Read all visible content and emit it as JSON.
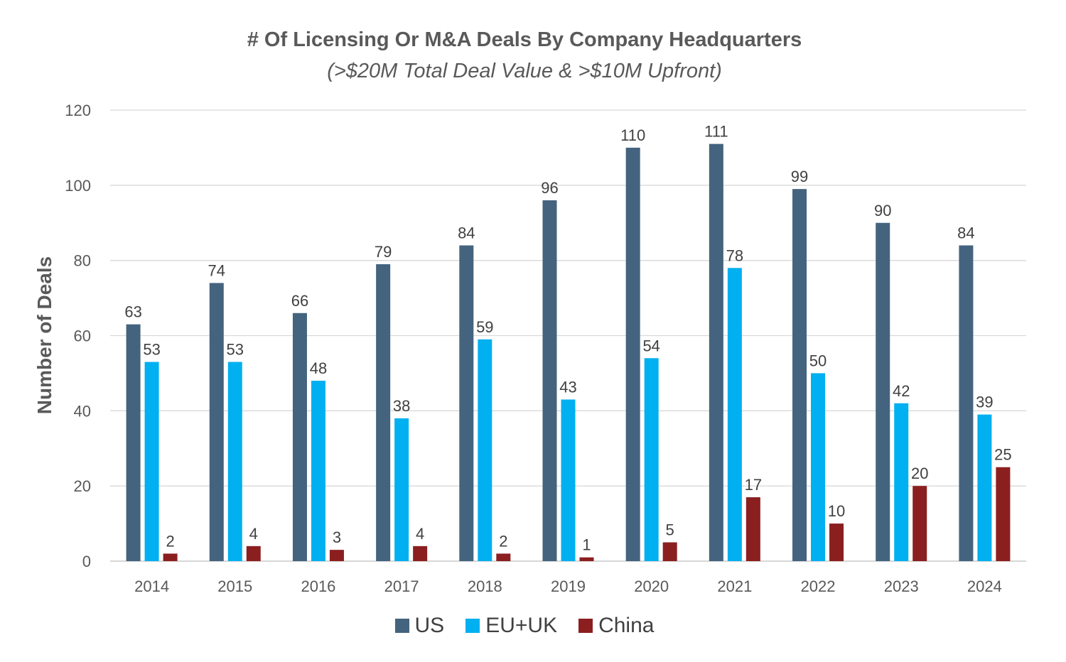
{
  "chart_data": {
    "type": "bar",
    "title": "# Of Licensing Or M&A Deals By Company Headquarters",
    "subtitle": "(>$20M Total Deal Value & >$10M Upfront)",
    "xlabel": "",
    "ylabel": "Number of Deals",
    "ylim": [
      0,
      120
    ],
    "yticks": [
      0,
      20,
      40,
      60,
      80,
      100,
      120
    ],
    "grid": true,
    "legend_position": "bottom",
    "categories": [
      "2014",
      "2015",
      "2016",
      "2017",
      "2018",
      "2019",
      "2020",
      "2021",
      "2022",
      "2023",
      "2024"
    ],
    "series": [
      {
        "name": "US",
        "color": "#44637F",
        "values": [
          63,
          74,
          66,
          79,
          84,
          96,
          110,
          111,
          99,
          90,
          84
        ]
      },
      {
        "name": "EU+UK",
        "color": "#00B0F0",
        "values": [
          53,
          53,
          48,
          38,
          59,
          43,
          54,
          78,
          50,
          42,
          39
        ]
      },
      {
        "name": "China",
        "color": "#8B1F1F",
        "values": [
          2,
          4,
          3,
          4,
          2,
          1,
          5,
          17,
          10,
          20,
          25
        ]
      }
    ]
  }
}
